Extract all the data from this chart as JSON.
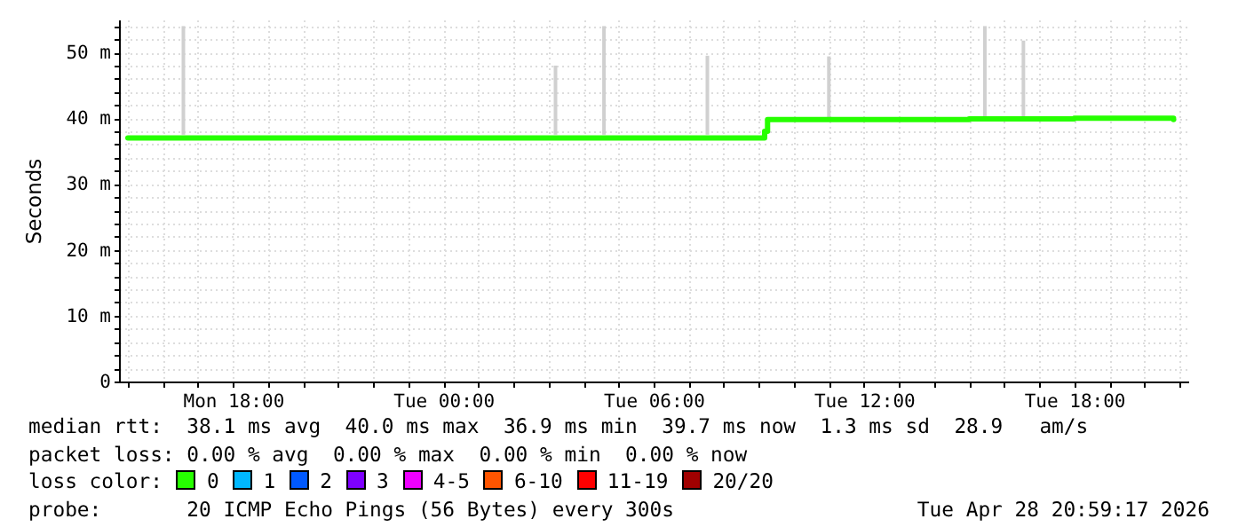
{
  "chart_data": {
    "type": "line",
    "ylabel": "Seconds",
    "legend_title": "loss color:",
    "legend": "bottom",
    "grid": true,
    "xlim": [
      "2026-04-27T15:00",
      "2026-04-28T21:00"
    ],
    "xticks": [
      {
        "value": "2026-04-27T15:00",
        "label": null
      },
      {
        "value": "2026-04-27T16:00",
        "label": null
      },
      {
        "value": "2026-04-27T17:00",
        "label": null
      },
      {
        "value": "2026-04-27T18:00",
        "label": "Mon 18:00"
      },
      {
        "value": "2026-04-27T19:00",
        "label": null
      },
      {
        "value": "2026-04-27T20:00",
        "label": null
      },
      {
        "value": "2026-04-27T21:00",
        "label": null
      },
      {
        "value": "2026-04-27T22:00",
        "label": null
      },
      {
        "value": "2026-04-27T23:00",
        "label": null
      },
      {
        "value": "2026-04-28T00:00",
        "label": "Tue 00:00"
      },
      {
        "value": "2026-04-28T01:00",
        "label": null
      },
      {
        "value": "2026-04-28T02:00",
        "label": null
      },
      {
        "value": "2026-04-28T03:00",
        "label": null
      },
      {
        "value": "2026-04-28T04:00",
        "label": null
      },
      {
        "value": "2026-04-28T05:00",
        "label": null
      },
      {
        "value": "2026-04-28T06:00",
        "label": "Tue 06:00"
      },
      {
        "value": "2026-04-28T07:00",
        "label": null
      },
      {
        "value": "2026-04-28T08:00",
        "label": null
      },
      {
        "value": "2026-04-28T09:00",
        "label": null
      },
      {
        "value": "2026-04-28T10:00",
        "label": null
      },
      {
        "value": "2026-04-28T11:00",
        "label": null
      },
      {
        "value": "2026-04-28T12:00",
        "label": "Tue 12:00"
      },
      {
        "value": "2026-04-28T13:00",
        "label": null
      },
      {
        "value": "2026-04-28T14:00",
        "label": null
      },
      {
        "value": "2026-04-28T15:00",
        "label": null
      },
      {
        "value": "2026-04-28T16:00",
        "label": null
      },
      {
        "value": "2026-04-28T17:00",
        "label": null
      },
      {
        "value": "2026-04-28T18:00",
        "label": "Tue 18:00"
      },
      {
        "value": "2026-04-28T19:00",
        "label": null
      },
      {
        "value": "2026-04-28T20:00",
        "label": null
      },
      {
        "value": "2026-04-28T21:00",
        "label": null
      }
    ],
    "ylim": [
      0,
      55
    ],
    "yticks": [
      {
        "value": 0,
        "label": "0"
      },
      {
        "value": 2,
        "label": null
      },
      {
        "value": 4,
        "label": null
      },
      {
        "value": 6,
        "label": null
      },
      {
        "value": 8,
        "label": null
      },
      {
        "value": 10,
        "label": "10 m"
      },
      {
        "value": 12,
        "label": null
      },
      {
        "value": 14,
        "label": null
      },
      {
        "value": 16,
        "label": null
      },
      {
        "value": 18,
        "label": null
      },
      {
        "value": 20,
        "label": "20 m"
      },
      {
        "value": 22,
        "label": null
      },
      {
        "value": 24,
        "label": null
      },
      {
        "value": 26,
        "label": null
      },
      {
        "value": 28,
        "label": null
      },
      {
        "value": 30,
        "label": "30 m"
      },
      {
        "value": 32,
        "label": null
      },
      {
        "value": 34,
        "label": null
      },
      {
        "value": 36,
        "label": null
      },
      {
        "value": 38,
        "label": null
      },
      {
        "value": 40,
        "label": "40 m"
      },
      {
        "value": 42,
        "label": null
      },
      {
        "value": 44,
        "label": null
      },
      {
        "value": 46,
        "label": null
      },
      {
        "value": 48,
        "label": null
      },
      {
        "value": 50,
        "label": "50 m"
      },
      {
        "value": 52,
        "label": null
      },
      {
        "value": 54,
        "label": null
      }
    ],
    "series": [
      {
        "type": "bar",
        "color": "#d0d0d0",
        "x": [
          "2026-04-27T16:35",
          "2026-04-28T03:12",
          "2026-04-28T04:35",
          "2026-04-28T07:32",
          "2026-04-28T11:00",
          "2026-04-28T15:27",
          "2026-04-28T16:33"
        ],
        "base": [
          37.5,
          37.5,
          37.5,
          37.5,
          40,
          40,
          40
        ],
        "values": [
          16.5,
          10.5,
          16.5,
          12,
          9.4,
          14,
          11.8
        ]
      },
      {
        "name": "0",
        "color": "#26ff00",
        "x": [
          "2026-04-27T15:00",
          "2026-04-27T18:00",
          "2026-04-27T21:00",
          "2026-04-28T00:00",
          "2026-04-28T03:00",
          "2026-04-28T06:00",
          "2026-04-28T09:05",
          "2026-04-28T09:10",
          "2026-04-28T09:15",
          "2026-04-28T12:00",
          "2026-04-28T15:00",
          "2026-04-28T18:00",
          "2026-04-28T20:50"
        ],
        "values": [
          37.0,
          37.0,
          37.0,
          37.0,
          37.0,
          37.0,
          37.0,
          38.0,
          39.8,
          39.8,
          39.9,
          40.0,
          39.8
        ]
      },
      {
        "type": "line",
        "name": "1",
        "color": "#00b8ff"
      },
      {
        "type": "line",
        "name": "2",
        "color": "#0059ff"
      },
      {
        "type": "line",
        "name": "3",
        "color": "#7e00ff"
      },
      {
        "type": "line",
        "name": "4-5",
        "color": "#ee00ff"
      },
      {
        "type": "line",
        "name": "6-10",
        "color": "#ff5500"
      },
      {
        "type": "line",
        "name": "11-19",
        "color": "#ff0000"
      },
      {
        "type": "line",
        "name": "20/20",
        "color": "#a10000"
      }
    ],
    "annotations": [
      "median rtt:  38.1 ms avg  40.0 ms max  36.9 ms min  39.7 ms now  1.3 ms sd  28.9   am/s",
      "packet loss: 0.00 % avg  0.00 % max  0.00 % min  0.00 % now",
      "probe:       20 ICMP Echo Pings (56 Bytes) every 300s",
      "Tue Apr 28 20:59:17 2026"
    ]
  }
}
